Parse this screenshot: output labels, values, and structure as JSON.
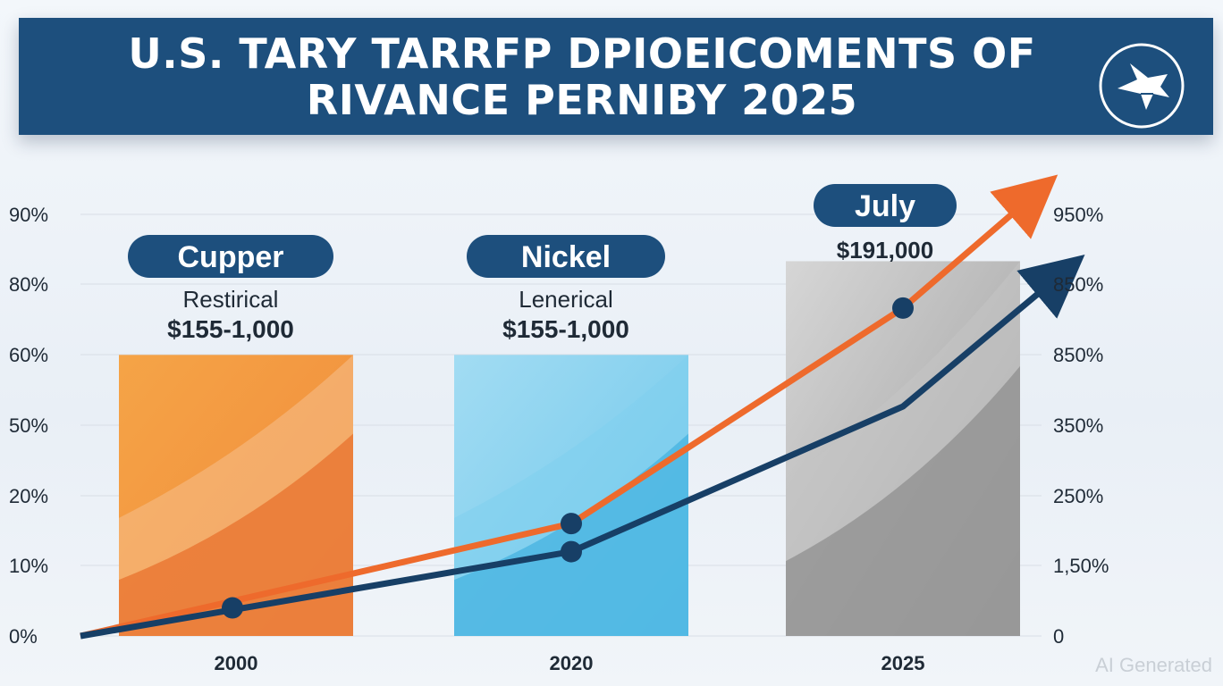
{
  "banner": {
    "title_line1": "U.S. TARY TARRFP DPIOEICOMENTS OF",
    "title_line2": "RIVANCE PERNIBY 2025",
    "logo_icon": "bird-logo-icon"
  },
  "watermark": "AI Generated",
  "chart_data": {
    "type": "bar",
    "title": "U.S. TARY TARRFP DPIOEICOMENTS OF RIVANCE PERNIBY 2025",
    "categories": [
      "2000",
      "2020",
      "2025"
    ],
    "bars": [
      {
        "category": "2000",
        "value": 60,
        "color": "#f08a3a"
      },
      {
        "category": "2020",
        "value": 60,
        "color": "#5bbfe6"
      },
      {
        "category": "2025",
        "value": 80,
        "color": "#a8a8a8"
      }
    ],
    "left_axis": {
      "tick_labels": [
        "0%",
        "10%",
        "20%",
        "50%",
        "60%",
        "80%",
        "90%"
      ],
      "ylim": [
        0,
        90
      ]
    },
    "right_axis": {
      "tick_labels": [
        "0",
        "1,50%",
        "250%",
        "350%",
        "850%",
        "850%",
        "950%"
      ]
    },
    "series": [
      {
        "color": "#ee6a2c",
        "x": [
          "2000",
          "2020",
          "2025"
        ],
        "values": [
          5,
          24,
          70
        ],
        "marker_x": [
          "2020",
          "2025"
        ],
        "trend_to_edge": 95
      },
      {
        "color": "#173f66",
        "x": [
          "2000",
          "2020",
          "2025"
        ],
        "values": [
          5,
          18,
          49
        ],
        "marker_x": [
          "2000",
          "2020"
        ],
        "trend_to_edge": 78
      }
    ],
    "callouts": [
      {
        "pill": "Cupper",
        "line1": "Restirical",
        "line2": "$155-1,000"
      },
      {
        "pill": "Nickel",
        "line1": "Lenerical",
        "line2": "$155-1,000"
      },
      {
        "pill": "July",
        "line1": "$191,000",
        "line2": ""
      }
    ],
    "grid": true,
    "legend": "none"
  }
}
